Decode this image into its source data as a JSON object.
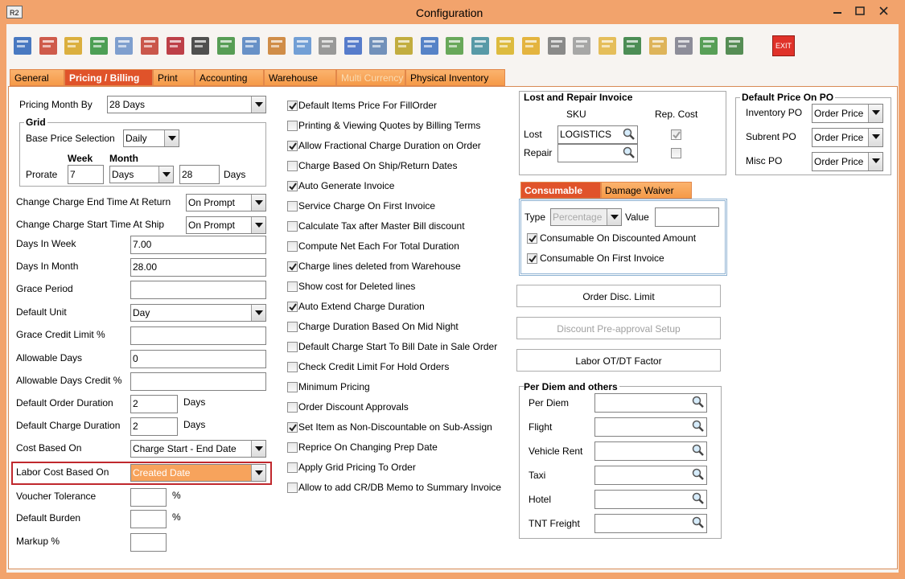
{
  "window": {
    "logo": "R2",
    "title": "Configuration",
    "exit_icon": "EXIT"
  },
  "tabs": [
    "General",
    "Pricing / Billing",
    "Print",
    "Accounting",
    "Warehouse",
    "Multi Currency",
    "Physical Inventory"
  ],
  "pricing_month_by": {
    "label": "Pricing Month By",
    "value": "28 Days"
  },
  "grid": {
    "title": "Grid",
    "base_price_selection": {
      "label": "Base Price Selection",
      "value": "Daily"
    },
    "week": "Week",
    "month": "Month",
    "prorate": {
      "label": "Prorate",
      "week_value": "7",
      "month_value": "Days",
      "days_value": "28",
      "unit": "Days"
    }
  },
  "fields": [
    {
      "label": "Change Charge End Time At Return",
      "value": "On Prompt"
    },
    {
      "label": "Change Charge Start Time At Ship",
      "value": "On Prompt"
    },
    {
      "label": "Days In Week",
      "value": "7.00"
    },
    {
      "label": "Days In Month",
      "value": "28.00"
    },
    {
      "label": "Grace Period"
    },
    {
      "label": "Default Unit",
      "value": "Day"
    },
    {
      "label": "Grace Credit Limit %"
    },
    {
      "label": "Allowable Days",
      "value": "0"
    },
    {
      "label": "Allowable Days Credit %"
    },
    {
      "label": "Default Order Duration",
      "value": "2",
      "unit": "Days"
    },
    {
      "label": "Default Charge Duration",
      "value": "2",
      "unit": "Days"
    },
    {
      "label": "Cost Based On",
      "value": "Charge Start - End Date"
    },
    {
      "label": "Labor Cost Based On",
      "value": "Created Date"
    },
    {
      "label": "Voucher Tolerance",
      "unit": "%"
    },
    {
      "label": "Default Burden",
      "unit": "%"
    },
    {
      "label": "Markup %"
    }
  ],
  "options": [
    {
      "label": "Default Items Price For FillOrder",
      "checked": true
    },
    {
      "label": "Printing & Viewing Quotes by Billing Terms",
      "checked": false
    },
    {
      "label": "Allow Fractional Charge Duration on Order",
      "checked": true
    },
    {
      "label": "Charge Based On Ship/Return Dates",
      "checked": false
    },
    {
      "label": "Auto Generate Invoice",
      "checked": true
    },
    {
      "label": "Service Charge On First Invoice",
      "checked": false
    },
    {
      "label": "Calculate Tax after Master Bill discount",
      "checked": false
    },
    {
      "label": "Compute Net Each For Total Duration",
      "checked": false
    },
    {
      "label": "Charge lines deleted from Warehouse",
      "checked": true
    },
    {
      "label": "Show cost for Deleted lines",
      "checked": false
    },
    {
      "label": "Auto Extend Charge Duration",
      "checked": true
    },
    {
      "label": "Charge Duration Based On Mid Night",
      "checked": false
    },
    {
      "label": "Default Charge Start To Bill Date in Sale Order",
      "checked": false
    },
    {
      "label": "Check Credit Limit For Hold Orders",
      "checked": false
    },
    {
      "label": "Minimum Pricing",
      "checked": false
    },
    {
      "label": "Order Discount Approvals",
      "checked": false
    },
    {
      "label": "Set Item as Non-Discountable on Sub-Assign",
      "checked": true
    },
    {
      "label": "Reprice On Changing Prep Date",
      "checked": false
    },
    {
      "label": "Apply Grid Pricing To Order",
      "checked": false
    },
    {
      "label": "Allow to add CR/DB Memo to Summary Invoice",
      "checked": false
    }
  ],
  "lost_repair": {
    "title": "Lost and Repair Invoice",
    "sku": "SKU",
    "rep_cost": "Rep. Cost",
    "rows": [
      {
        "label": "Lost",
        "value": "LOGISTICS",
        "checked": true
      },
      {
        "label": "Repair",
        "checked": false
      }
    ]
  },
  "consumable": {
    "tabs": [
      "Consumable",
      "Damage Waiver"
    ],
    "type_label": "Type",
    "type_value": "Percentage",
    "value_label": "Value",
    "options": [
      {
        "label": "Consumable On Discounted Amount",
        "checked": true
      },
      {
        "label": "Consumable On First Invoice",
        "checked": true
      }
    ]
  },
  "buttons": [
    "Order Disc. Limit",
    "Discount Pre-approval Setup",
    "Labor OT/DT Factor"
  ],
  "per_diem": {
    "title": "Per Diem and others",
    "items": [
      "Per Diem",
      "Flight",
      "Vehicle Rent",
      "Taxi",
      "Hotel",
      "TNT Freight"
    ]
  },
  "default_price_po": {
    "title": "Default Price On PO",
    "rows": [
      {
        "label": "Inventory PO",
        "value": "Order Price"
      },
      {
        "label": "Subrent PO",
        "value": "Order Price"
      },
      {
        "label": "Misc PO",
        "value": "Order Price"
      }
    ]
  }
}
